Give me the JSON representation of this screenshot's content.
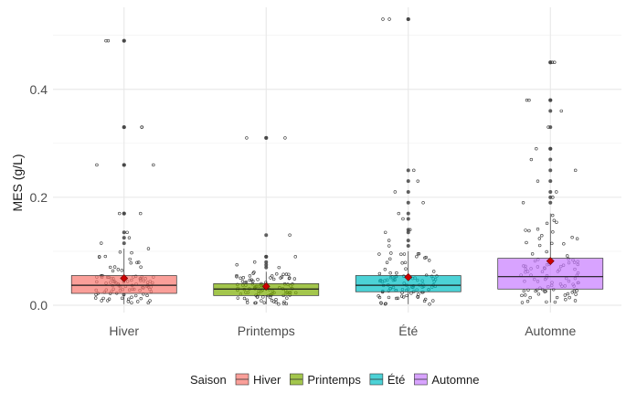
{
  "chart_data": {
    "type": "box",
    "title": "",
    "ylabel": "MES (g/L)",
    "xlabel": "",
    "ylim": [
      0,
      0.55
    ],
    "yticks": [
      0.0,
      0.2,
      0.4
    ],
    "grid": true,
    "legend_position": "bottom",
    "legend_title": "Saison",
    "categories": [
      "Hiver",
      "Printemps",
      "Été",
      "Automne"
    ],
    "colors": [
      "#F8766D",
      "#7CAE00",
      "#00BFC4",
      "#C77CFF"
    ],
    "mean_marker_color": "#CC0000",
    "series": [
      {
        "name": "Hiver",
        "q1": 0.022,
        "median": 0.037,
        "q3": 0.055,
        "whisker_low": 0.002,
        "whisker_high": 0.105,
        "mean": 0.05,
        "outliers": [
          0.115,
          0.125,
          0.135,
          0.17,
          0.17,
          0.26,
          0.26,
          0.33,
          0.33,
          0.49,
          0.49
        ]
      },
      {
        "name": "Printemps",
        "q1": 0.018,
        "median": 0.03,
        "q3": 0.04,
        "whisker_low": 0.002,
        "whisker_high": 0.062,
        "mean": 0.035,
        "outliers": [
          0.07,
          0.075,
          0.08,
          0.09,
          0.09,
          0.13,
          0.31,
          0.31
        ]
      },
      {
        "name": "Été",
        "q1": 0.025,
        "median": 0.037,
        "q3": 0.055,
        "whisker_low": 0.002,
        "whisker_high": 0.1,
        "mean": 0.052,
        "outliers": [
          0.11,
          0.12,
          0.135,
          0.14,
          0.16,
          0.17,
          0.19,
          0.21,
          0.23,
          0.25,
          0.53,
          0.53
        ]
      },
      {
        "name": "Automne",
        "q1": 0.03,
        "median": 0.053,
        "q3": 0.087,
        "whisker_low": 0.005,
        "whisker_high": 0.17,
        "mean": 0.082,
        "outliers": [
          0.19,
          0.2,
          0.21,
          0.23,
          0.25,
          0.27,
          0.29,
          0.29,
          0.33,
          0.36,
          0.38,
          0.38,
          0.45,
          0.45
        ]
      }
    ]
  }
}
